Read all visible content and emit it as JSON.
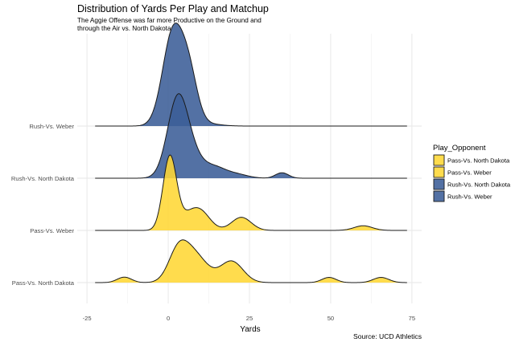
{
  "chart_data": {
    "type": "ridgeline",
    "title": "Distribution of Yards Per Play and Matchup",
    "subtitle_lines": [
      "The Aggie Offense was far more Productive on the Ground and",
      "through the Air vs. North Dakota"
    ],
    "xlabel": "Yards",
    "caption": "Source: UCD Athletics",
    "xlim": [
      -28,
      78
    ],
    "x_ticks": [
      -25,
      0,
      25,
      50,
      75
    ],
    "x_tick_labels": [
      "-25",
      "0",
      "25",
      "50",
      "75"
    ],
    "density_range": [
      -22.5,
      73.5
    ],
    "grid": true,
    "legend": {
      "title": "Play_Opponent",
      "placement": "right",
      "entries": [
        {
          "label": "Pass-Vs. North Dakota",
          "color": "#ffd734"
        },
        {
          "label": "Pass-Vs. Weber",
          "color": "#ffd734"
        },
        {
          "label": "Rush-Vs. North Dakota",
          "color": "#3b5d97"
        },
        {
          "label": "Rush-Vs. Weber",
          "color": "#3b5d97"
        }
      ]
    },
    "series": [
      {
        "name": "Pass-Vs. North Dakota",
        "color": "#ffd734",
        "components": [
          {
            "mu": -13.5,
            "sd": 2.2,
            "h": 0.1
          },
          {
            "mu": 3.0,
            "sd": 3.0,
            "h": 0.5
          },
          {
            "mu": 8.0,
            "sd": 4.0,
            "h": 0.5
          },
          {
            "mu": 19.5,
            "sd": 3.5,
            "h": 0.39
          },
          {
            "mu": 49.5,
            "sd": 2.2,
            "h": 0.095
          },
          {
            "mu": 65.5,
            "sd": 2.4,
            "h": 0.095
          }
        ]
      },
      {
        "name": "Pass-Vs. Weber",
        "color": "#ffd734",
        "components": [
          {
            "mu": 0.5,
            "sd": 2.1,
            "h": 1.35
          },
          {
            "mu": 6.0,
            "sd": 2.8,
            "h": 0.2
          },
          {
            "mu": 10.0,
            "sd": 3.0,
            "h": 0.32
          },
          {
            "mu": 22.5,
            "sd": 3.0,
            "h": 0.24
          },
          {
            "mu": 60.0,
            "sd": 2.8,
            "h": 0.085
          }
        ]
      },
      {
        "name": "Rush-Vs. North Dakota",
        "color": "#3b5d97",
        "components": [
          {
            "mu": 3.0,
            "sd": 3.2,
            "h": 1.48
          },
          {
            "mu": 8.0,
            "sd": 3.0,
            "h": 0.25
          },
          {
            "mu": 14.0,
            "sd": 3.5,
            "h": 0.2
          },
          {
            "mu": 21.0,
            "sd": 3.5,
            "h": 0.07
          },
          {
            "mu": 35.0,
            "sd": 2.0,
            "h": 0.1
          }
        ]
      },
      {
        "name": "Rush-Vs. Weber",
        "color": "#3b5d97",
        "components": [
          {
            "mu": 1.5,
            "sd": 3.2,
            "h": 1.72
          },
          {
            "mu": 6.5,
            "sd": 2.6,
            "h": 0.8
          },
          {
            "mu": 12.0,
            "sd": 4.0,
            "h": 0.04
          }
        ]
      }
    ]
  }
}
